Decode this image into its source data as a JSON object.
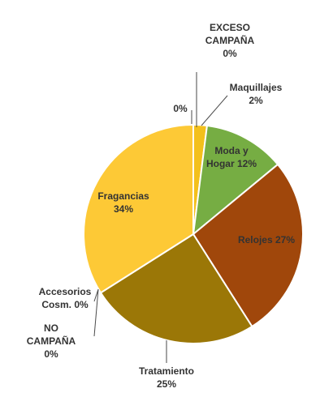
{
  "chart_data": {
    "type": "pie",
    "title": "",
    "slices": [
      {
        "name": "EXCESO CAMPAÑA",
        "value": 0,
        "label_lines": [
          "EXCESO",
          "CAMPAÑA",
          "0%"
        ],
        "color": "#ffffff"
      },
      {
        "name": "Maquillajes",
        "value": 2,
        "label_lines": [
          "Maquillajes",
          "2%"
        ],
        "color": "#f3c01c"
      },
      {
        "name": "Moda y Hogar",
        "value": 12,
        "label_lines": [
          "Moda y",
          "Hogar 12%"
        ],
        "color": "#76ad43"
      },
      {
        "name": "Relojes",
        "value": 27,
        "label_lines": [
          "Relojes 27%"
        ],
        "color": "#a0470b"
      },
      {
        "name": "Tratamiento",
        "value": 25,
        "label_lines": [
          "Tratamiento",
          "25%"
        ],
        "color": "#9b7707"
      },
      {
        "name": "NO CAMPAÑA",
        "value": 0,
        "label_lines": [
          "NO",
          "CAMPAÑA",
          "0%"
        ],
        "color": "#ffffff"
      },
      {
        "name": "Accesorios Cosm.",
        "value": 0,
        "label_lines": [
          "Accesorios",
          "Cosm. 0%"
        ],
        "color": "#ffffff"
      },
      {
        "name": "Fragancias",
        "value": 34,
        "label_lines": [
          "Fragancias",
          "34%"
        ],
        "color": "#fdc936"
      },
      {
        "name": "",
        "value": 0,
        "label_lines": [
          "0%"
        ],
        "color": "#ffffff"
      }
    ],
    "start_angle_deg": 0,
    "direction": "clockwise",
    "legend": "none"
  }
}
